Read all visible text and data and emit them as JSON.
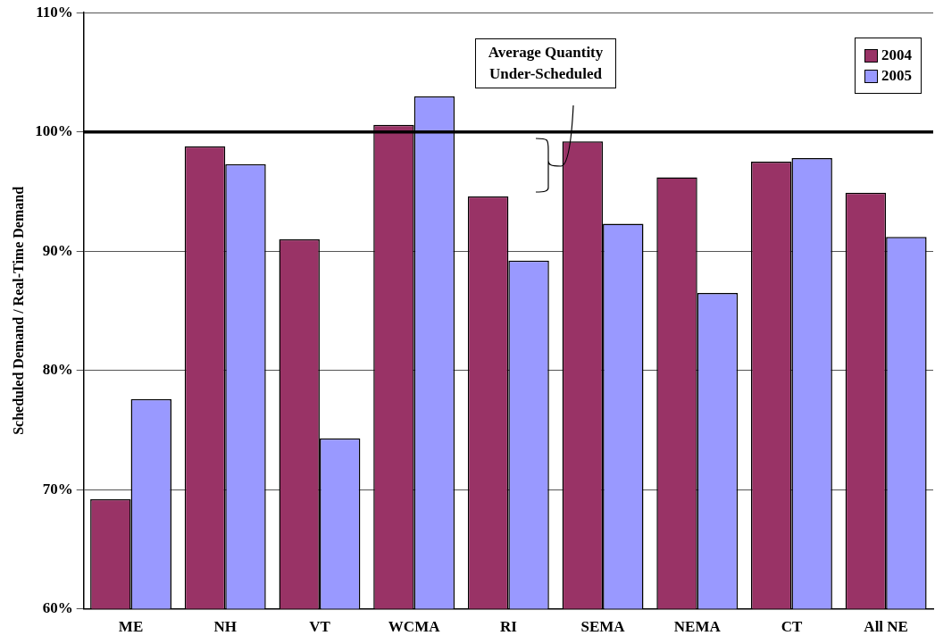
{
  "chart_data": {
    "type": "bar",
    "ylabel": "Scheduled Demand / Real-Time Demand",
    "categories": [
      "ME",
      "NH",
      "VT",
      "WCMA",
      "RI",
      "SEMA",
      "NEMA",
      "CT",
      "All NE"
    ],
    "series": [
      {
        "name": "2004",
        "color": "#993366",
        "values": [
          69.2,
          98.8,
          91.0,
          100.6,
          94.6,
          99.2,
          96.2,
          97.5,
          94.9
        ]
      },
      {
        "name": "2005",
        "color": "#9999ff",
        "values": [
          77.6,
          97.3,
          74.3,
          103.0,
          89.2,
          92.3,
          86.5,
          97.8,
          91.2
        ]
      }
    ],
    "ylim": [
      60,
      110
    ],
    "yticks": [
      {
        "value": 60,
        "label": "60%"
      },
      {
        "value": 70,
        "label": "70%"
      },
      {
        "value": 80,
        "label": "80%"
      },
      {
        "value": 90,
        "label": "90%"
      },
      {
        "value": 100,
        "label": "100%"
      },
      {
        "value": 110,
        "label": "110%"
      }
    ],
    "grid": "y",
    "legend": "top right",
    "ref_lines": [
      {
        "axis": "y",
        "value": 100,
        "label": null,
        "color": "#000000"
      }
    ],
    "annotations": [
      "Average Quantity Under-Scheduled"
    ]
  }
}
